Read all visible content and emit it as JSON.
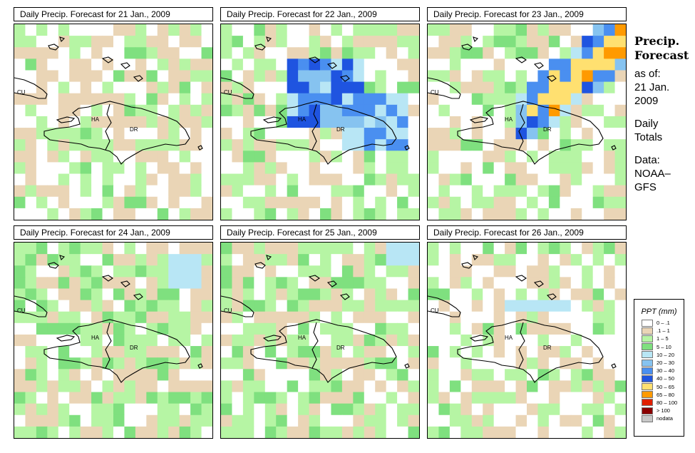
{
  "panels": [
    {
      "title": "Daily Precip. Forecast for  21 Jan., 2009",
      "intensity": 0
    },
    {
      "title": "Daily Precip. Forecast for  22 Jan., 2009",
      "intensity": 1
    },
    {
      "title": "Daily Precip. Forecast for  23 Jan., 2009",
      "intensity": 2
    },
    {
      "title": "Daily Precip. Forecast for  24 Jan., 2009",
      "intensity": 3
    },
    {
      "title": "Daily Precip. Forecast for  25 Jan., 2009",
      "intensity": 4
    },
    {
      "title": "Daily Precip. Forecast for  26 Jan., 2009",
      "intensity": 5
    }
  ],
  "region_labels": {
    "cu": "CU",
    "ha": "HA",
    "dr": "DR"
  },
  "side": {
    "heading1": "Precip.",
    "heading2": "Forecast",
    "line1": "as of:",
    "line2": "21 Jan.",
    "line3": "2009",
    "line4": "Daily",
    "line5": "Totals",
    "line6": "Data:",
    "line7": "NOAA–",
    "line8": "GFS"
  },
  "legend": {
    "title": "PPT (mm)",
    "items": [
      {
        "label": "0 – .1",
        "color": "#ffffff"
      },
      {
        "label": ".1 – 1",
        "color": "#ead5b6"
      },
      {
        "label": "1 – 5",
        "color": "#b6f5a4"
      },
      {
        "label": "5 – 10",
        "color": "#7fe07f"
      },
      {
        "label": "10 – 20",
        "color": "#b8e6f5"
      },
      {
        "label": "20 – 30",
        "color": "#86c3f0"
      },
      {
        "label": "30 – 40",
        "color": "#4a8ff0"
      },
      {
        "label": "40 – 50",
        "color": "#1f54e0"
      },
      {
        "label": "50 – 65",
        "color": "#ffe070"
      },
      {
        "label": "65 – 80",
        "color": "#ff9a00"
      },
      {
        "label": "80 – 100",
        "color": "#e02000"
      },
      {
        "label": "> 100",
        "color": "#8a0000"
      },
      {
        "label": "nodata",
        "color": "#c8c8c8"
      }
    ]
  }
}
